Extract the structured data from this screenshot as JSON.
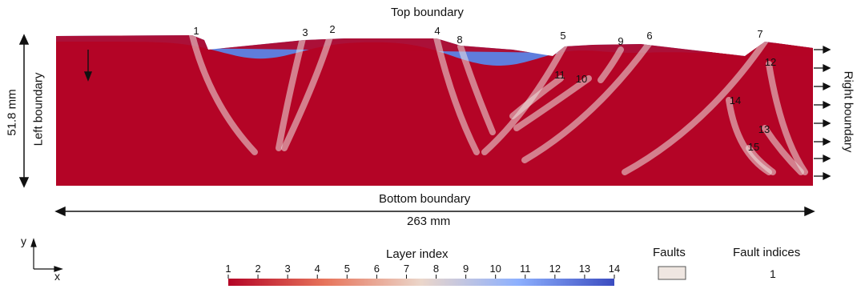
{
  "labels": {
    "top": "Top boundary",
    "bottom": "Bottom boundary",
    "left": "Left boundary",
    "right": "Right boundary",
    "height": "51.8 mm",
    "width": "263 mm",
    "gravity": "g",
    "axis_x": "x",
    "axis_y": "y"
  },
  "legend": {
    "layer_title": "Layer index",
    "layer_ticks": [
      "1",
      "2",
      "3",
      "4",
      "5",
      "6",
      "7",
      "8",
      "9",
      "10",
      "11",
      "12",
      "13",
      "14"
    ],
    "faults_title": "Faults",
    "fault_indices_title": "Fault indices",
    "fault_indices_example": "1"
  },
  "fault_labels": [
    "1",
    "2",
    "3",
    "4",
    "5",
    "6",
    "7",
    "8",
    "9",
    "10",
    "11",
    "12",
    "13",
    "14",
    "15"
  ],
  "colors": {
    "layer_1": "#b40426",
    "layer_7": "#ead5c9",
    "layer_14": "#3b4cc0",
    "fault": "#efe6e1"
  }
}
